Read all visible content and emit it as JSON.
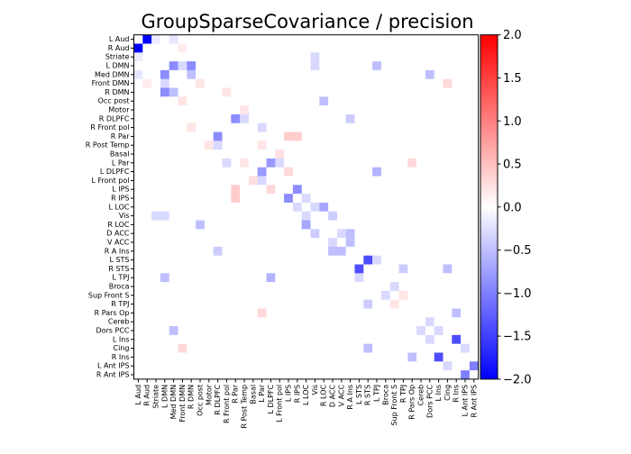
{
  "chart_data": {
    "type": "heatmap",
    "title": "GroupSparseCovariance / precision",
    "labels": [
      "L Aud",
      "R Aud",
      "Striate",
      "L DMN",
      "Med DMN",
      "Front DMN",
      "R DMN",
      "Occ post",
      "Motor",
      "R DLPFC",
      "R Front pol",
      "R Par",
      "R Post Temp",
      "Basal",
      "L Par",
      "L DLPFC",
      "L Front pol",
      "L IPS",
      "R IPS",
      "L LOC",
      "Vis",
      "R LOC",
      "D ACC",
      "V ACC",
      "R A Ins",
      "L STS",
      "R STS",
      "L TPJ",
      "Broca",
      "Sup Front S",
      "R TPJ",
      "R Pars Op",
      "Cereb",
      "Dors PCC",
      "L Ins",
      "Cing",
      "R Ins",
      "L Ant IPS",
      "R Ant IPS"
    ],
    "colormap": "bwr",
    "vmin": -2.0,
    "vmax": 2.0,
    "colorbar_ticks": [
      "2.0",
      "1.5",
      "1.0",
      "0.5",
      "0.0",
      "-0.5",
      "-1.0",
      "-1.5",
      "-2.0"
    ],
    "symmetric": true,
    "default_value": 0.0,
    "entries": [
      [
        0,
        1,
        -2.0
      ],
      [
        0,
        2,
        -0.15
      ],
      [
        0,
        4,
        -0.2
      ],
      [
        3,
        4,
        -0.9
      ],
      [
        3,
        6,
        -0.9
      ],
      [
        4,
        6,
        -0.5
      ],
      [
        3,
        5,
        -0.3
      ],
      [
        5,
        7,
        0.2
      ],
      [
        9,
        11,
        -0.9
      ],
      [
        9,
        12,
        -0.3
      ],
      [
        11,
        17,
        0.4
      ],
      [
        11,
        18,
        0.4
      ],
      [
        10,
        14,
        -0.3
      ],
      [
        14,
        15,
        -0.8
      ],
      [
        14,
        16,
        -0.3
      ],
      [
        15,
        17,
        0.3
      ],
      [
        12,
        14,
        0.2
      ],
      [
        17,
        18,
        -0.9
      ],
      [
        18,
        19,
        -0.3
      ],
      [
        19,
        21,
        -0.7
      ],
      [
        20,
        22,
        -0.4
      ],
      [
        19,
        20,
        -0.3
      ],
      [
        22,
        24,
        -0.5
      ],
      [
        23,
        24,
        -0.5
      ],
      [
        22,
        23,
        -0.3
      ],
      [
        25,
        26,
        -1.4
      ],
      [
        25,
        27,
        -0.3
      ],
      [
        26,
        30,
        -0.4
      ],
      [
        26,
        35,
        -0.5
      ],
      [
        34,
        36,
        -1.4
      ],
      [
        37,
        38,
        -1.0
      ],
      [
        31,
        36,
        -0.5
      ],
      [
        35,
        37,
        -0.3
      ],
      [
        33,
        34,
        -0.3
      ],
      [
        2,
        20,
        -0.3
      ],
      [
        4,
        33,
        -0.5
      ],
      [
        21,
        7,
        -0.5
      ],
      [
        20,
        3,
        -0.3
      ],
      [
        24,
        9,
        -0.4
      ],
      [
        27,
        15,
        -0.6
      ],
      [
        27,
        3,
        -0.5
      ],
      [
        14,
        31,
        0.3
      ],
      [
        35,
        5,
        0.3
      ],
      [
        8,
        12,
        0.2
      ],
      [
        13,
        16,
        0.25
      ],
      [
        28,
        29,
        -0.3
      ],
      [
        29,
        30,
        0.2
      ],
      [
        32,
        33,
        -0.3
      ],
      [
        6,
        10,
        0.2
      ],
      [
        1,
        5,
        0.15
      ]
    ]
  }
}
